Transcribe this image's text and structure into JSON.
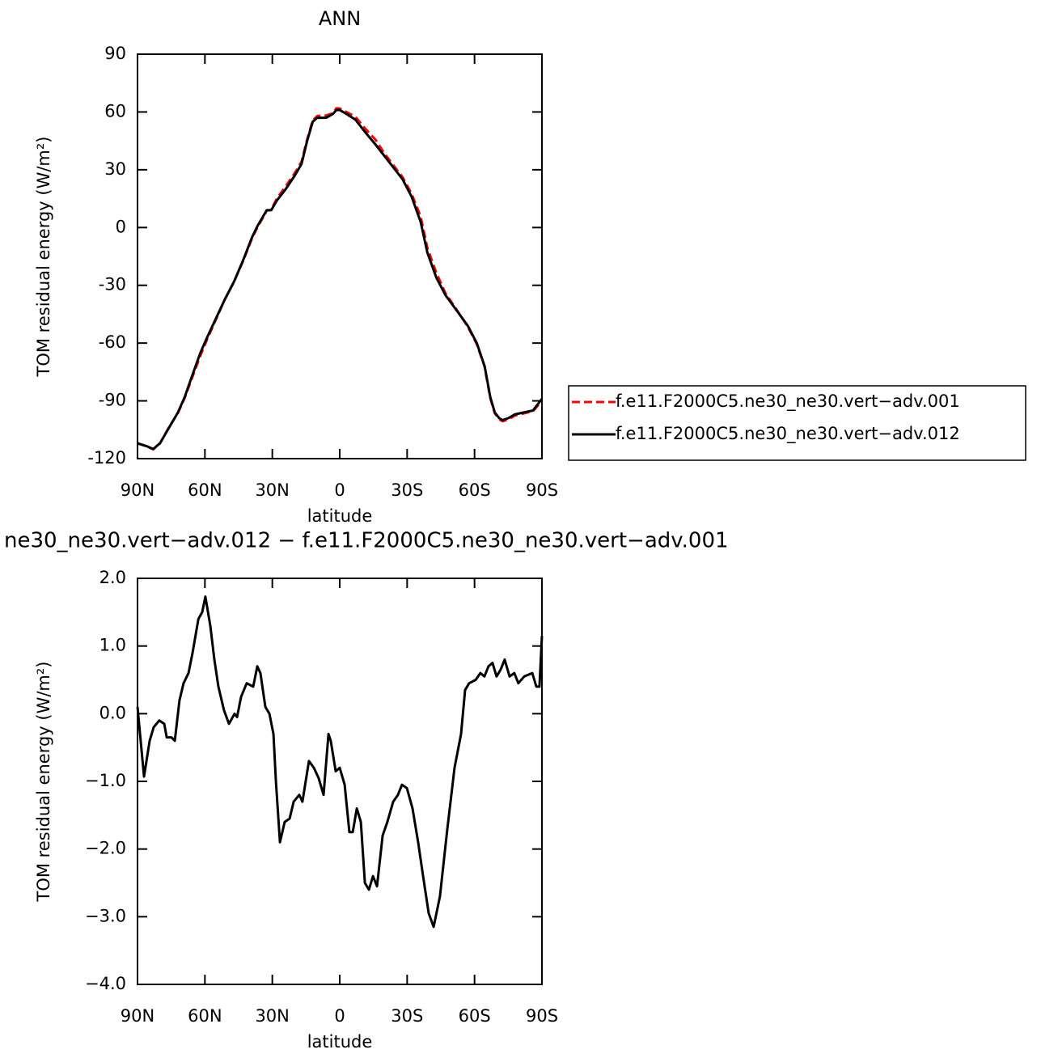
{
  "chart_data": [
    {
      "type": "line",
      "title": "ANN",
      "xlabel": "latitude",
      "ylabel": "TOM residual energy (W/m²)",
      "xlim": [
        90,
        -90
      ],
      "ylim": [
        -120,
        90
      ],
      "xticks": [
        {
          "value": 90,
          "label": "90N"
        },
        {
          "value": 60,
          "label": "60N"
        },
        {
          "value": 30,
          "label": "30N"
        },
        0,
        {
          "value": -30,
          "label": "30S"
        },
        {
          "value": -60,
          "label": "60S"
        },
        {
          "value": -90,
          "label": "90S"
        }
      ],
      "yticks": [
        -120,
        -90,
        -60,
        -30,
        0,
        30,
        60,
        90
      ],
      "legend": "right",
      "x": [
        90,
        86,
        83,
        80,
        76,
        72,
        69,
        66,
        62,
        59,
        55,
        51,
        47,
        43,
        39,
        36.5,
        34,
        32.5,
        30.5,
        28,
        24,
        20,
        17,
        14.5,
        12,
        10,
        6,
        3,
        1.5,
        0,
        -3,
        -7,
        -11,
        -16,
        -20,
        -24,
        -28,
        -32,
        -36,
        -39,
        -43,
        -47,
        -52,
        -57,
        -61,
        -64.5,
        -67,
        -69,
        -71,
        -72.5,
        -75,
        -78,
        -82,
        -86,
        -90
      ],
      "series": [
        {
          "name": "f.e11.F2000C5.ne30_ne30.vert−adv.001",
          "color": "#ff0000",
          "dash": "dashed",
          "values": [
            -112.1,
            -113.6,
            -115.2,
            -112.1,
            -103.7,
            -96.3,
            -88.5,
            -79,
            -66.5,
            -58,
            -47.5,
            -37,
            -28,
            -17.4,
            -5.5,
            0.4,
            5.5,
            8.8,
            9.2,
            15,
            21.5,
            28.3,
            34.2,
            45.7,
            55.7,
            57.9,
            58.2,
            59.3,
            61.9,
            61.8,
            60,
            57.5,
            51.8,
            45.5,
            38.3,
            32.2,
            26.1,
            17.5,
            5.8,
            -10.5,
            -23.5,
            -34,
            -42.6,
            -51.5,
            -60.5,
            -72.4,
            -88.6,
            -96.4,
            -99.6,
            -100.6,
            -99.7,
            -97.6,
            -96.5,
            -95.4,
            -90.1
          ]
        },
        {
          "name": "f.e11.F2000C5.ne30_ne30.vert−adv.012",
          "color": "#000000",
          "dash": "solid",
          "values": [
            -112,
            -113.5,
            -115,
            -112,
            -104,
            -96,
            -88,
            -78,
            -65,
            -57,
            -47,
            -37,
            -28,
            -17,
            -5,
            1,
            6,
            9,
            9,
            14,
            20,
            27,
            33,
            45,
            55,
            57,
            57,
            59,
            61,
            61,
            59,
            56,
            50,
            43,
            37,
            31,
            25,
            16,
            3,
            -13,
            -26,
            -35,
            -43,
            -51,
            -60,
            -72,
            -88,
            -96,
            -99,
            -100,
            -99,
            -97,
            -96,
            -95,
            -89
          ]
        }
      ]
    },
    {
      "type": "line",
      "title": "ne30_ne30.vert−adv.012 − f.e11.F2000C5.ne30_ne30.vert−adv.001",
      "xlabel": "latitude",
      "ylabel": "TOM residual energy (W/m²)",
      "xlim": [
        90,
        -90
      ],
      "ylim": [
        -4,
        2
      ],
      "xticks": [
        {
          "value": 90,
          "label": "90N"
        },
        {
          "value": 60,
          "label": "60N"
        },
        {
          "value": 30,
          "label": "30N"
        },
        0,
        {
          "value": -30,
          "label": "30S"
        },
        {
          "value": -60,
          "label": "60S"
        },
        {
          "value": -90,
          "label": "90S"
        }
      ],
      "yticks": [
        {
          "value": -4,
          "label": "−4.0"
        },
        {
          "value": -3,
          "label": "−3.0"
        },
        {
          "value": -2,
          "label": "−2.0"
        },
        {
          "value": -1,
          "label": "−1.0"
        },
        {
          "value": 0,
          "label": "0.0"
        },
        {
          "value": 1,
          "label": "1.0"
        },
        {
          "value": 2,
          "label": "2.0"
        }
      ],
      "x": [
        90,
        87.1,
        84.6,
        82.8,
        80.3,
        78.1,
        77,
        74.9,
        73.4,
        71.3,
        69.5,
        67.3,
        65.5,
        62.9,
        61.2,
        59.8,
        57.6,
        55.8,
        54,
        51.5,
        49.3,
        46.8,
        45.7,
        43.9,
        41.4,
        38.5,
        36.7,
        35.3,
        33.1,
        31.3,
        29.5,
        28.4,
        26.6,
        24.5,
        22.3,
        20.5,
        18,
        16.6,
        13.7,
        11.5,
        9.4,
        7.2,
        5,
        4,
        1.8,
        0,
        -2.2,
        -4.3,
        -5.8,
        -7.6,
        -9.4,
        -11.2,
        -13,
        -14.8,
        -16.6,
        -19.1,
        -21.2,
        -23.8,
        -25.9,
        -27.7,
        -29.9,
        -32.4,
        -34.9,
        -37.1,
        -39.6,
        -41.8,
        -44.6,
        -47.9,
        -51.1,
        -54,
        -55.8,
        -57.6,
        -60.5,
        -62.6,
        -64.4,
        -66.2,
        -68,
        -69.8,
        -71.6,
        -73.4,
        -75.6,
        -77.7,
        -79.5,
        -82.1,
        -85.7,
        -87.5,
        -88.9,
        -90
      ],
      "series": [
        {
          "color": "#000000",
          "dash": "solid",
          "values": [
            0.1,
            -0.93,
            -0.4,
            -0.2,
            -0.1,
            -0.15,
            -0.35,
            -0.35,
            -0.4,
            0.2,
            0.45,
            0.6,
            0.9,
            1.4,
            1.5,
            1.73,
            1.3,
            0.8,
            0.4,
            0.05,
            -0.15,
            0,
            -0.05,
            0.25,
            0.45,
            0.4,
            0.7,
            0.6,
            0.1,
            0,
            -0.3,
            -1.0,
            -1.9,
            -1.6,
            -1.55,
            -1.3,
            -1.2,
            -1.3,
            -0.7,
            -0.8,
            -0.95,
            -1.2,
            -0.3,
            -0.4,
            -0.85,
            -0.8,
            -1.05,
            -1.75,
            -1.75,
            -1.4,
            -1.6,
            -2.5,
            -2.6,
            -2.4,
            -2.55,
            -1.8,
            -1.6,
            -1.3,
            -1.2,
            -1.05,
            -1.1,
            -1.4,
            -1.9,
            -2.4,
            -2.95,
            -3.15,
            -2.7,
            -1.7,
            -0.8,
            -0.3,
            0.35,
            0.45,
            0.5,
            0.6,
            0.55,
            0.7,
            0.75,
            0.55,
            0.65,
            0.8,
            0.55,
            0.6,
            0.45,
            0.55,
            0.6,
            0.4,
            0.4,
            1.15
          ]
        }
      ]
    }
  ]
}
